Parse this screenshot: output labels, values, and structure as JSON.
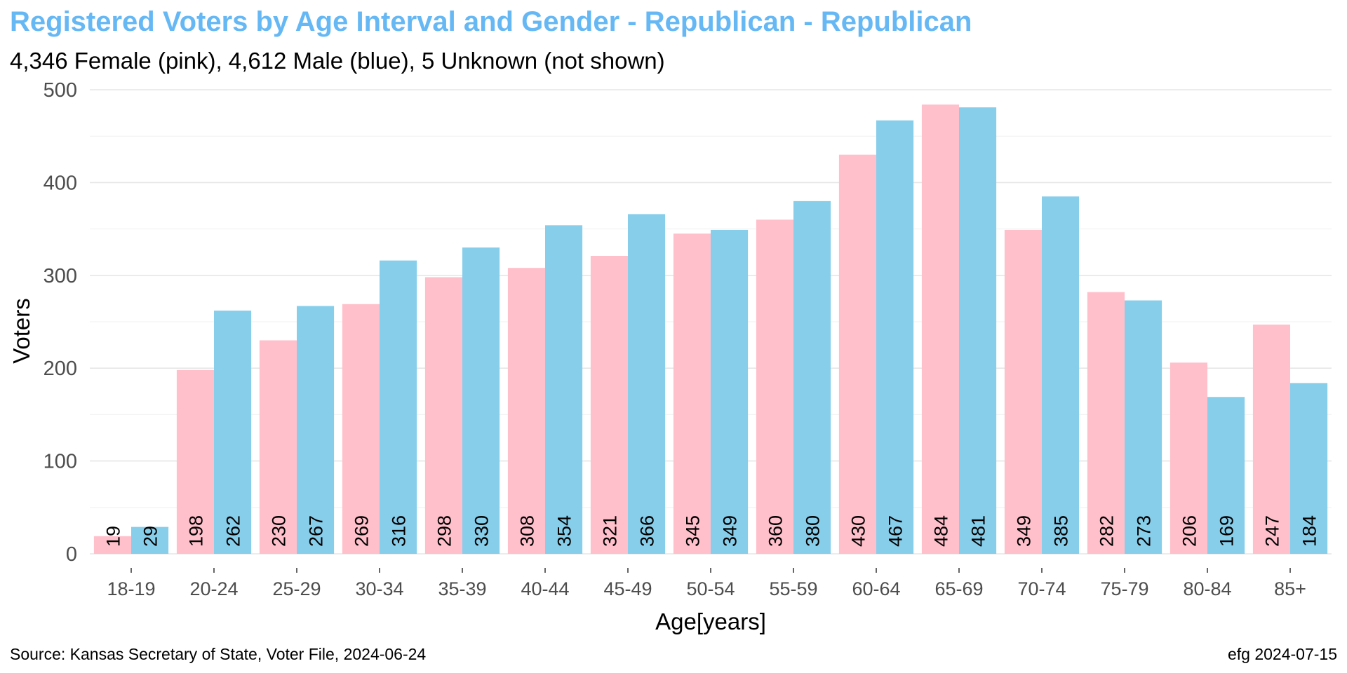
{
  "colors": {
    "title": "#66b8f5",
    "female": "#ffc0cb",
    "male": "#87ceeb",
    "grid_major": "#e6e6e6",
    "grid_minor": "#f0f0f0",
    "tick_text": "#4d4d4d"
  },
  "chart_data": {
    "type": "bar",
    "title": "Registered Voters by Age Interval and Gender - Republican - Republican",
    "subtitle": "4,346 Female (pink),  4,612 Male (blue),  5 Unknown (not shown)",
    "xlabel": "Age[years]",
    "ylabel": "Voters",
    "ylim": [
      0,
      500
    ],
    "yticks": [
      "0",
      "100",
      "200",
      "300",
      "400",
      "500"
    ],
    "grid": true,
    "legend": "none",
    "categories": [
      "18-19",
      "20-24",
      "25-29",
      "30-34",
      "35-39",
      "40-44",
      "45-49",
      "50-54",
      "55-59",
      "60-64",
      "65-69",
      "70-74",
      "75-79",
      "80-84",
      "85+"
    ],
    "series": [
      {
        "name": "Female (pink)",
        "color": "#ffc0cb",
        "values": [
          19,
          198,
          230,
          269,
          298,
          308,
          321,
          345,
          360,
          430,
          484,
          349,
          282,
          206,
          247
        ]
      },
      {
        "name": "Male (blue)",
        "color": "#87ceeb",
        "values": [
          29,
          262,
          267,
          316,
          330,
          354,
          366,
          349,
          380,
          467,
          481,
          385,
          273,
          169,
          184
        ]
      }
    ],
    "source": "Source: Kansas Secretary of State, Voter File, 2024-06-24",
    "credit": "efg 2024-07-15"
  }
}
